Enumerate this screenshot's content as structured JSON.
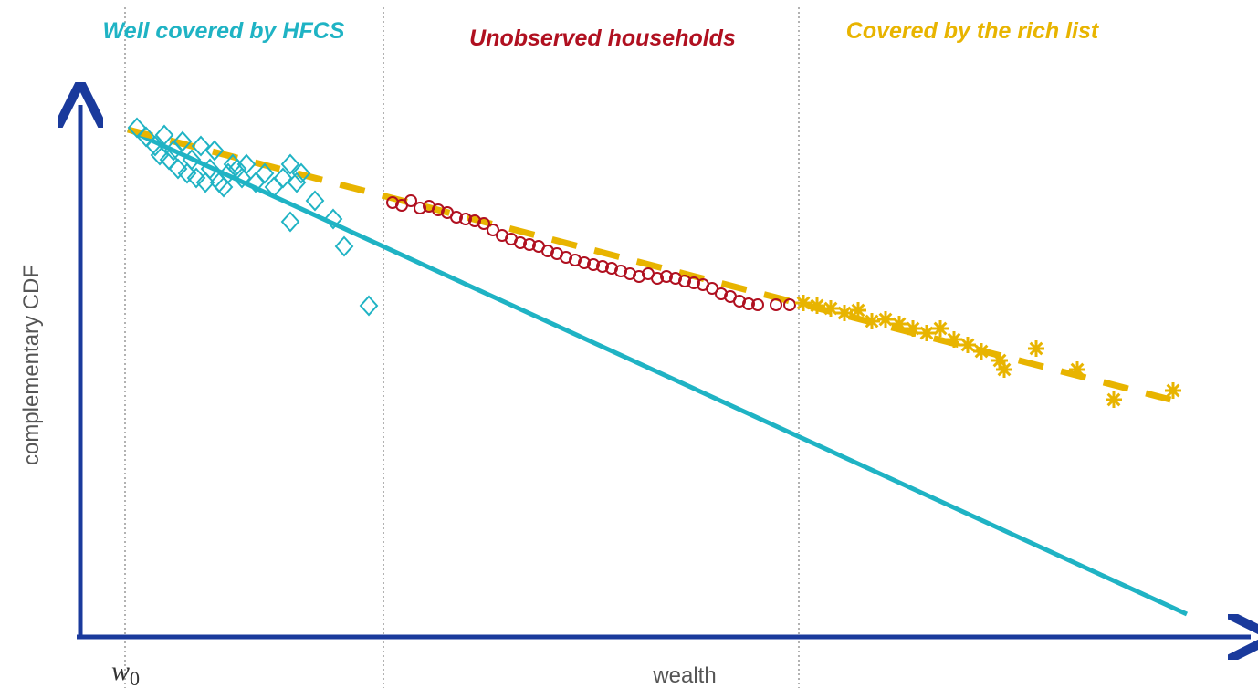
{
  "chart_data": {
    "type": "scatter",
    "regions": [
      {
        "label": "Well covered by HFCS",
        "color": "#1fb3c4"
      },
      {
        "label": "Unobserved households",
        "color": "#b01020"
      },
      {
        "label": "Covered by the rich list",
        "color": "#e8b400"
      }
    ],
    "xlabel": "wealth",
    "ylabel": "complementary CDF",
    "origin_label": {
      "text": "w",
      "sub": "0"
    },
    "xlim": [
      0,
      1282
    ],
    "ylim": [
      0,
      588
    ],
    "vlines": [
      49,
      332,
      787
    ],
    "series": [
      {
        "type": "scatter",
        "marker": "diamond",
        "color": "#1fb3c4",
        "x": [
          62,
          72,
          82,
          92,
          87,
          102,
          112,
          107,
          122,
          132,
          127,
          142,
          147,
          152,
          162,
          167,
          157,
          177,
          182,
          192,
          202,
          212,
          222,
          230,
          237,
          242,
          257,
          277,
          230,
          289,
          316,
          97,
          117,
          137,
          172
        ],
        "values": [
          558,
          548,
          538,
          550,
          528,
          533,
          543,
          513,
          523,
          538,
          503,
          513,
          533,
          498,
          508,
          518,
          493,
          503,
          518,
          498,
          508,
          493,
          503,
          518,
          498,
          508,
          478,
          458,
          455,
          428,
          363,
          523,
          508,
          498,
          513
        ]
      },
      {
        "type": "scatter",
        "marker": "circle",
        "color": "#b01020",
        "x": [
          342,
          352,
          362,
          372,
          382,
          392,
          402,
          412,
          422,
          432,
          442,
          452,
          462,
          472,
          482,
          492,
          502,
          512,
          522,
          532,
          542,
          552,
          562,
          572,
          582,
          592,
          602,
          612,
          622,
          632,
          642,
          652,
          662,
          672,
          682,
          692,
          702,
          712,
          722,
          732,
          742,
          762,
          777
        ],
        "values": [
          476,
          473,
          478,
          470,
          472,
          468,
          465,
          460,
          458,
          456,
          453,
          446,
          440,
          436,
          432,
          430,
          428,
          423,
          420,
          416,
          413,
          410,
          408,
          406,
          404,
          401,
          398,
          395,
          398,
          393,
          395,
          393,
          390,
          388,
          386,
          382,
          376,
          373,
          368,
          365,
          364,
          364,
          364
        ]
      },
      {
        "type": "scatter",
        "marker": "star",
        "color": "#e8b400",
        "x": [
          792,
          807,
          822,
          837,
          852,
          867,
          882,
          897,
          912,
          927,
          942,
          957,
          972,
          987,
          1007,
          1012,
          1047,
          1092,
          1132,
          1197
        ],
        "values": [
          366,
          363,
          360,
          355,
          358,
          346,
          348,
          343,
          338,
          333,
          338,
          326,
          320,
          313,
          303,
          293,
          316,
          293,
          260,
          270
        ]
      },
      {
        "type": "line",
        "color": "#1fb3c4",
        "dashed": false,
        "x": [
          52,
          1212
        ],
        "values": [
          556,
          25
        ]
      },
      {
        "type": "line",
        "color": "#e8b400",
        "dashed": true,
        "x": [
          52,
          1202
        ],
        "values": [
          556,
          258
        ]
      }
    ]
  }
}
